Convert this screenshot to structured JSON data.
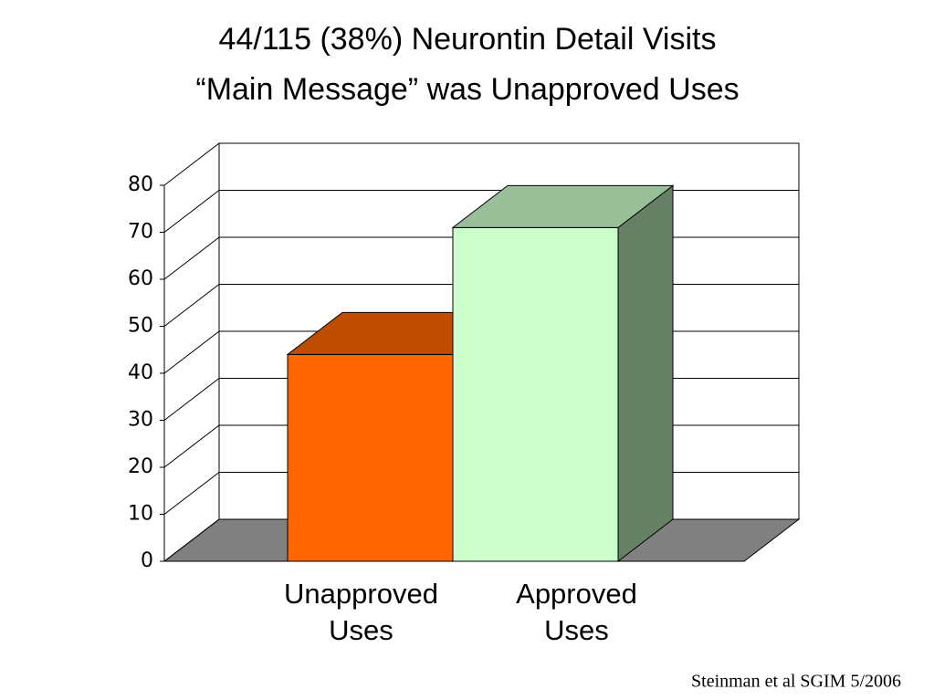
{
  "chart_data": {
    "type": "bar3d",
    "title": "44/115 (38%) Neurontin Detail Visits",
    "subtitle": "“Main Message” was Unapproved Uses",
    "categories": [
      "Unapproved Uses",
      "Approved Uses"
    ],
    "values": [
      44,
      71
    ],
    "colors": [
      "#ff6600",
      "#ccffcc"
    ],
    "ylim": [
      0,
      80
    ],
    "yticks": [
      0,
      10,
      20,
      30,
      40,
      50,
      60,
      70,
      80
    ],
    "grid": true,
    "source": "Steinman et al  SGIM  5/2006"
  }
}
